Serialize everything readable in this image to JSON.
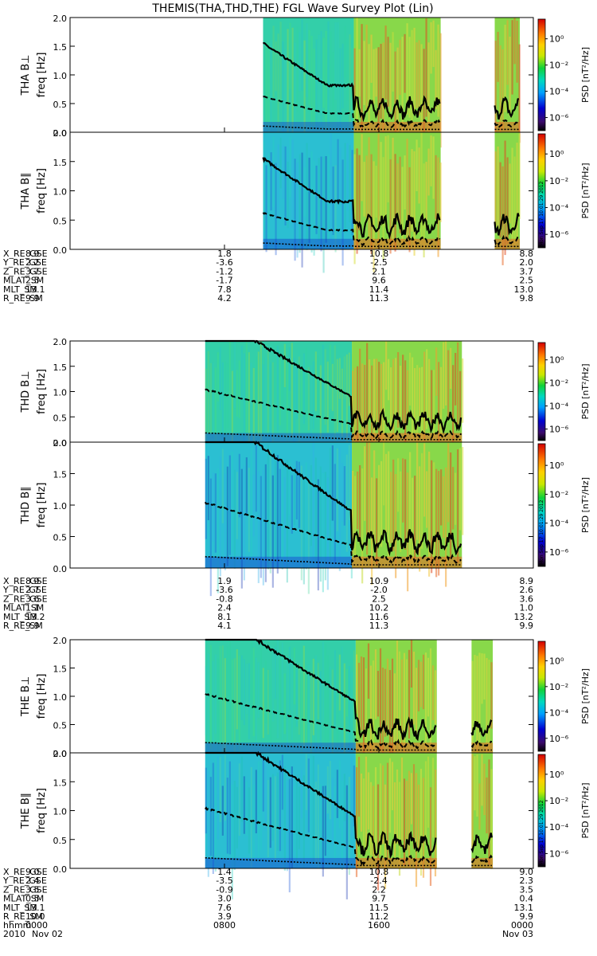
{
  "title": "THEMIS(THA,THD,THE) FGL Wave Survey Plot (Lin)",
  "colorbar": {
    "label": "PSD [nT²/Hz]",
    "ticks": [
      "10⁰",
      "10⁻²",
      "10⁻⁴",
      "10⁻⁶"
    ],
    "tick_values": [
      0,
      -2,
      -4,
      -6
    ],
    "log_range": [
      -7,
      1.5
    ],
    "stamp": "Mon Sep 17 10:01:29 2012"
  },
  "colors": {
    "sheath": "#2a8f2a",
    "background": "#ffffff"
  },
  "chart_data": {
    "type": "heatmap",
    "xlim_hours": [
      0,
      24
    ],
    "xticks_hhmm": [
      "0000",
      "0800",
      "1600",
      "0000"
    ],
    "xtick_hours": [
      0,
      8,
      16,
      24
    ],
    "date_labels": [
      "2010",
      "Nov 02",
      "Nov 03"
    ],
    "ylim_hz": [
      0,
      2.0
    ],
    "yticks": [
      "0.0",
      "0.5",
      "1.0",
      "1.5",
      "2.0"
    ],
    "ytick_values": [
      0,
      0.5,
      1.0,
      1.5,
      2.0
    ],
    "panels": [
      {
        "probe": "THA",
        "component": "B⊥",
        "ylabel1": "THA B⊥",
        "ylabel2": "freq [Hz]",
        "data_segments": [
          [
            10.0,
            14.7
          ],
          [
            14.7,
            19.2
          ],
          [
            22.0,
            23.3
          ]
        ]
      },
      {
        "probe": "THA",
        "component": "B∥",
        "ylabel1": "THA B∥",
        "ylabel2": "freq [Hz]",
        "data_segments": [
          [
            10.0,
            14.7
          ],
          [
            14.7,
            19.2
          ],
          [
            22.0,
            23.3
          ]
        ]
      },
      {
        "probe": "THD",
        "component": "B⊥",
        "ylabel1": "THD B⊥",
        "ylabel2": "freq [Hz]",
        "data_segments": [
          [
            7.0,
            14.6
          ],
          [
            14.6,
            20.3
          ]
        ]
      },
      {
        "probe": "THD",
        "component": "B∥",
        "ylabel1": "THD B∥",
        "ylabel2": "freq [Hz]",
        "data_segments": [
          [
            7.0,
            14.6
          ],
          [
            14.6,
            20.3
          ]
        ]
      },
      {
        "probe": "THE",
        "component": "B⊥",
        "ylabel1": "THE B⊥",
        "ylabel2": "freq [Hz]",
        "data_segments": [
          [
            7.0,
            14.8
          ],
          [
            14.8,
            19.0
          ],
          [
            20.8,
            21.9
          ]
        ]
      },
      {
        "probe": "THE",
        "component": "B∥",
        "ylabel1": "THE B∥",
        "ylabel2": "freq [Hz]",
        "data_segments": [
          [
            7.0,
            14.8
          ],
          [
            14.8,
            19.0
          ],
          [
            20.8,
            21.9
          ]
        ]
      }
    ],
    "ephemeris": [
      {
        "probe": "THA",
        "rows": [
          {
            "label": "X_RE_GSE",
            "values": [
              "8.9",
              "1.8",
              "10.8",
              "8.8"
            ]
          },
          {
            "label": "Y_RE_GSE",
            "values": [
              "2.2",
              "-3.6",
              "-2.5",
              "2.0"
            ]
          },
          {
            "label": "Z_RE_GSE",
            "values": [
              "3.7",
              "-1.2",
              "2.1",
              "3.7"
            ]
          },
          {
            "label": "MLAT_SM",
            "values": [
              "2.5",
              "-1.7",
              "9.6",
              "2.5"
            ]
          },
          {
            "label": "MLT_SM",
            "values": [
              "13.1",
              "7.8",
              "11.4",
              "13.0"
            ]
          },
          {
            "label": "R_RE_SM",
            "values": [
              "9.9",
              "4.2",
              "11.3",
              "9.8"
            ]
          }
        ]
      },
      {
        "probe": "THD",
        "rows": [
          {
            "label": "X_RE_GSE",
            "values": [
              "8.9",
              "1.9",
              "10.9",
              "8.9"
            ]
          },
          {
            "label": "Y_RE_GSE",
            "values": [
              "2.7",
              "-3.6",
              "-2.0",
              "2.6"
            ]
          },
          {
            "label": "Z_RE_GSE",
            "values": [
              "3.6",
              "-0.8",
              "2.5",
              "3.6"
            ]
          },
          {
            "label": "MLAT_SM",
            "values": [
              "1.1",
              "2.4",
              "10.2",
              "1.0"
            ]
          },
          {
            "label": "MLT_SM",
            "values": [
              "13.2",
              "8.1",
              "11.6",
              "13.2"
            ]
          },
          {
            "label": "R_RE_SM",
            "values": [
              "9.9",
              "4.1",
              "11.3",
              "9.9"
            ]
          }
        ]
      },
      {
        "probe": "THE",
        "rows": [
          {
            "label": "X_RE_GSE",
            "values": [
              "9.0",
              "1.4",
              "10.8",
              "9.0"
            ]
          },
          {
            "label": "Y_RE_GSE",
            "values": [
              "2.4",
              "-3.5",
              "-2.4",
              "2.3"
            ]
          },
          {
            "label": "Z_RE_GSE",
            "values": [
              "3.5",
              "-0.9",
              "2.2",
              "3.5"
            ]
          },
          {
            "label": "MLAT_SM",
            "values": [
              "0.5",
              "3.0",
              "9.7",
              "0.4"
            ]
          },
          {
            "label": "MLT_SM",
            "values": [
              "13.1",
              "7.6",
              "11.5",
              "13.1"
            ]
          },
          {
            "label": "R_RE_SM",
            "values": [
              "10.0",
              "3.9",
              "11.2",
              "9.9"
            ]
          }
        ]
      }
    ],
    "time_row_label": "hhmm"
  }
}
